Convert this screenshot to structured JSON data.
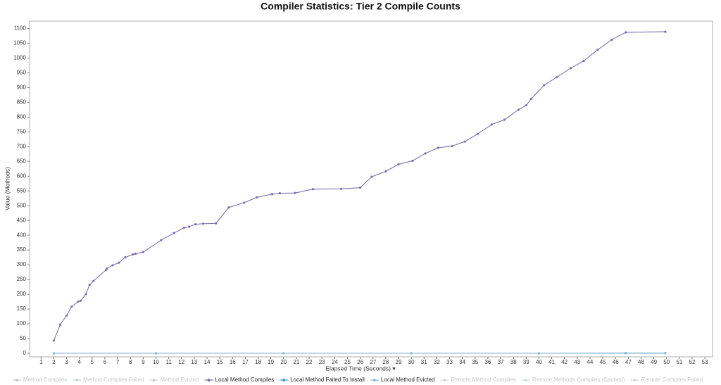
{
  "chart_data": {
    "type": "line",
    "title": "Compiler Statistics: Tier 2 Compile Counts",
    "x_label": "Elapsed Time (Seconds) ▾",
    "y_label": "Value (Methods)",
    "xlim": [
      0.1,
      53.6
    ],
    "ylim": [
      -12,
      1125
    ],
    "xticks": [
      1,
      2,
      3,
      4,
      5,
      6,
      7,
      8,
      9,
      10,
      11,
      12,
      13,
      14,
      15,
      16,
      17,
      18,
      19,
      20,
      21,
      22,
      23,
      24,
      25,
      26,
      27,
      28,
      29,
      30,
      31,
      32,
      33,
      34,
      35,
      36,
      37,
      38,
      39,
      40,
      41,
      42,
      43,
      44,
      45,
      46,
      47,
      48,
      49,
      50,
      51,
      52,
      53
    ],
    "yticks": [
      0,
      50,
      100,
      150,
      200,
      250,
      300,
      350,
      400,
      450,
      500,
      550,
      600,
      650,
      700,
      750,
      800,
      850,
      900,
      950,
      1000,
      1050,
      1100
    ],
    "grid": true,
    "series": [
      {
        "name": "Method Compiles",
        "color": "#c9c9d6",
        "hidden": true
      },
      {
        "name": "Method Compiles Failed",
        "color": "#c9d6d6",
        "hidden": true
      },
      {
        "name": "Method Evicted",
        "color": "#d0d0d0",
        "hidden": true
      },
      {
        "name": "Local Method Compiles",
        "color": "#7d6fae",
        "x": [
          2,
          2.5,
          3,
          3.4,
          3.9,
          4.1,
          4.5,
          4.8,
          5.1,
          6.1,
          6.15,
          6.6,
          7.1,
          7.6,
          8.2,
          8.4,
          9,
          10.4,
          11.4,
          12.2,
          12.6,
          13.1,
          13.7,
          14.7,
          15.7,
          16.9,
          17.9,
          19.1,
          19.7,
          20.9,
          22.3,
          24.5,
          26,
          26.9,
          28,
          29,
          30.1,
          31.1,
          32.1,
          33.2,
          34.2,
          35.2,
          36.3,
          37.3,
          38.4,
          39,
          39.4,
          40.4,
          41.4,
          42.5,
          43.5,
          44.6,
          45.7,
          46.8,
          49.9
        ],
        "values": [
          43,
          97,
          128,
          158,
          175,
          178,
          200,
          232,
          245,
          283,
          287,
          298,
          307,
          325,
          335,
          337,
          343,
          383,
          407,
          425,
          429,
          437,
          439,
          440,
          494,
          510,
          528,
          539,
          542,
          543,
          556,
          557,
          561,
          598,
          616,
          640,
          652,
          677,
          696,
          702,
          717,
          743,
          775,
          791,
          825,
          840,
          862,
          908,
          935,
          966,
          990,
          1028,
          1062,
          1087,
          1089
        ]
      },
      {
        "name": "Local Method Failed To Install",
        "color": "#3a9fc4",
        "x": [
          2,
          10,
          20,
          30,
          40,
          46.8,
          49.9
        ],
        "values": [
          0,
          0,
          0,
          0,
          0,
          1,
          1
        ]
      },
      {
        "name": "Local Method Evicted",
        "color": "#8fb8d8",
        "x": [
          2,
          10,
          20,
          30,
          40,
          46.8,
          49.9
        ],
        "values": [
          0,
          0,
          0,
          0,
          0,
          0,
          0
        ]
      },
      {
        "name": "Remote Method Compiles",
        "color": "#d6d6e0",
        "hidden": true
      },
      {
        "name": "Remote Methods Compiles (Cached)",
        "color": "#d0dbe3",
        "hidden": true
      },
      {
        "name": "Remote Compiles Failed",
        "color": "#d6d6d6",
        "hidden": true
      }
    ]
  }
}
